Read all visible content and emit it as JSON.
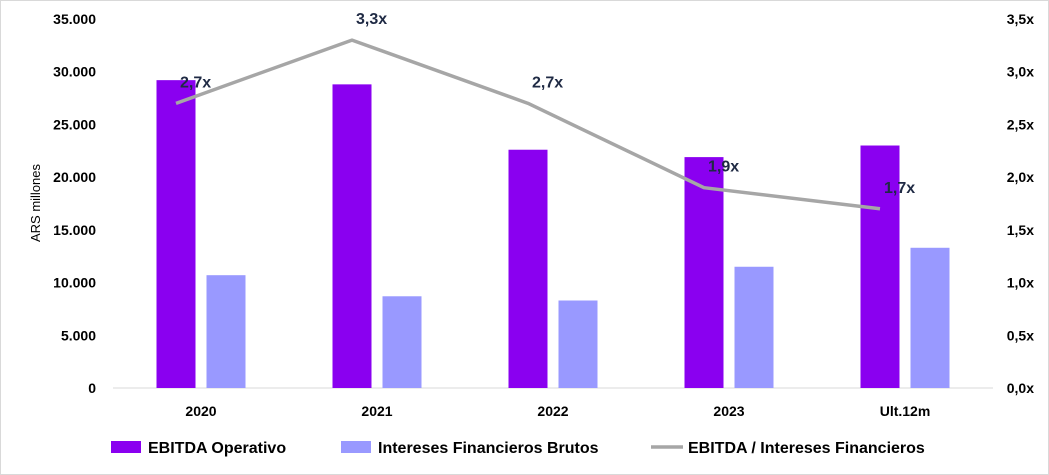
{
  "chart_data": {
    "type": "bar",
    "categories": [
      "2020",
      "2021",
      "2022",
      "2023",
      "Ult.12m"
    ],
    "ylabel": "ARS millones",
    "ylim": [
      0,
      35000
    ],
    "y_ticks": [
      "0",
      "5.000",
      "10.000",
      "15.000",
      "20.000",
      "25.000",
      "30.000",
      "35.000"
    ],
    "y2lim": [
      0,
      3.5
    ],
    "y2_ticks": [
      "0,0x",
      "0,5x",
      "1,0x",
      "1,5x",
      "2,0x",
      "2,5x",
      "3,0x",
      "3,5x"
    ],
    "series": [
      {
        "name": "EBITDA Operativo",
        "kind": "bar",
        "axis": "left",
        "color": "#8a00f0",
        "values": [
          29200,
          28800,
          22600,
          21900,
          23000
        ]
      },
      {
        "name": "Intereses Financieros Brutos",
        "kind": "bar",
        "axis": "left",
        "color": "#9999ff",
        "values": [
          10700,
          8700,
          8300,
          11500,
          13300
        ]
      },
      {
        "name": "EBITDA / Intereses Financieros",
        "kind": "line",
        "axis": "right",
        "color": "#a6a6a6",
        "values": [
          2.7,
          3.3,
          2.7,
          1.9,
          1.7
        ],
        "labels": [
          "2,7x",
          "3,3x",
          "2,7x",
          "1,9x",
          "1,7x"
        ]
      }
    ],
    "grid": false,
    "legend_position": "bottom"
  }
}
